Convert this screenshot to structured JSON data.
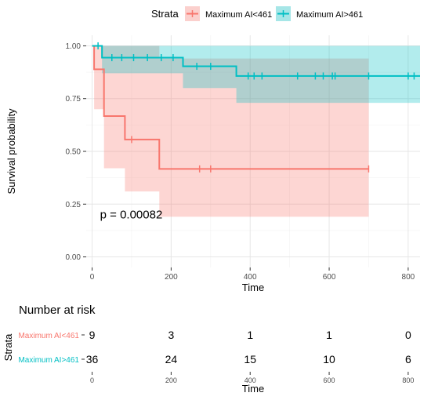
{
  "legend": {
    "title": "Strata",
    "position": "top",
    "entries": [
      {
        "label": "Maximum AI<461",
        "color": "#F8766D"
      },
      {
        "label": "Maximum AI>461",
        "color": "#00BFC4"
      }
    ]
  },
  "chart_data": [
    {
      "type": "line",
      "subtype": "kaplan-meier",
      "title": "",
      "xlabel": "Time",
      "ylabel": "Survival probability",
      "xlim": [
        -15,
        830
      ],
      "ylim": [
        -0.05,
        1.05
      ],
      "xticks": [
        0,
        200,
        400,
        600,
        800
      ],
      "yticks": [
        0.0,
        0.25,
        0.5,
        0.75,
        1.0
      ],
      "ytick_labels": [
        "0.00",
        "0.25",
        "0.50",
        "0.75",
        "1.00"
      ],
      "grid": true,
      "annotation": {
        "text": "p = 0.00082",
        "x": 20,
        "y": 0.2
      },
      "series": [
        {
          "name": "Maximum AI<461",
          "color": "#F8766D",
          "steps": [
            {
              "t": 0,
              "s": 1.0,
              "lower": 1.0,
              "upper": 1.0
            },
            {
              "t": 5,
              "s": 0.889,
              "lower": 0.7,
              "upper": 1.0
            },
            {
              "t": 30,
              "s": 0.667,
              "lower": 0.42,
              "upper": 1.0
            },
            {
              "t": 83,
              "s": 0.556,
              "lower": 0.31,
              "upper": 1.0
            },
            {
              "t": 170,
              "s": 0.417,
              "lower": 0.19,
              "upper": 0.94
            }
          ],
          "end": 700,
          "censors": [
            {
              "t": 100,
              "s": 0.556
            },
            {
              "t": 272,
              "s": 0.417
            },
            {
              "t": 300,
              "s": 0.417
            },
            {
              "t": 700,
              "s": 0.417
            }
          ]
        },
        {
          "name": "Maximum AI>461",
          "color": "#00BFC4",
          "steps": [
            {
              "t": 0,
              "s": 1.0,
              "lower": 1.0,
              "upper": 1.0
            },
            {
              "t": 25,
              "s": 0.944,
              "lower": 0.87,
              "upper": 1.0
            },
            {
              "t": 230,
              "s": 0.903,
              "lower": 0.8,
              "upper": 1.0
            },
            {
              "t": 365,
              "s": 0.857,
              "lower": 0.73,
              "upper": 1.0
            }
          ],
          "end": 830,
          "censors": [
            {
              "t": 15,
              "s": 1.0
            },
            {
              "t": 50,
              "s": 0.944
            },
            {
              "t": 75,
              "s": 0.944
            },
            {
              "t": 105,
              "s": 0.944
            },
            {
              "t": 140,
              "s": 0.944
            },
            {
              "t": 175,
              "s": 0.944
            },
            {
              "t": 205,
              "s": 0.944
            },
            {
              "t": 265,
              "s": 0.903
            },
            {
              "t": 300,
              "s": 0.903
            },
            {
              "t": 395,
              "s": 0.857
            },
            {
              "t": 410,
              "s": 0.857
            },
            {
              "t": 430,
              "s": 0.857
            },
            {
              "t": 520,
              "s": 0.857
            },
            {
              "t": 565,
              "s": 0.857
            },
            {
              "t": 585,
              "s": 0.857
            },
            {
              "t": 608,
              "s": 0.857
            },
            {
              "t": 615,
              "s": 0.857
            },
            {
              "t": 700,
              "s": 0.857
            },
            {
              "t": 800,
              "s": 0.857
            },
            {
              "t": 815,
              "s": 0.857
            }
          ]
        }
      ]
    },
    {
      "type": "table",
      "title": "Number at risk",
      "ylabel": "Strata",
      "xlabel": "Time",
      "xlim": [
        -15,
        830
      ],
      "xticks": [
        0,
        200,
        400,
        600,
        800
      ],
      "rows": [
        {
          "name": "Maximum AI<461",
          "color": "#F8766D",
          "values": [
            9,
            3,
            1,
            1,
            0
          ]
        },
        {
          "name": "Maximum AI>461",
          "color": "#00BFC4",
          "values": [
            36,
            24,
            15,
            10,
            6
          ]
        }
      ]
    }
  ]
}
